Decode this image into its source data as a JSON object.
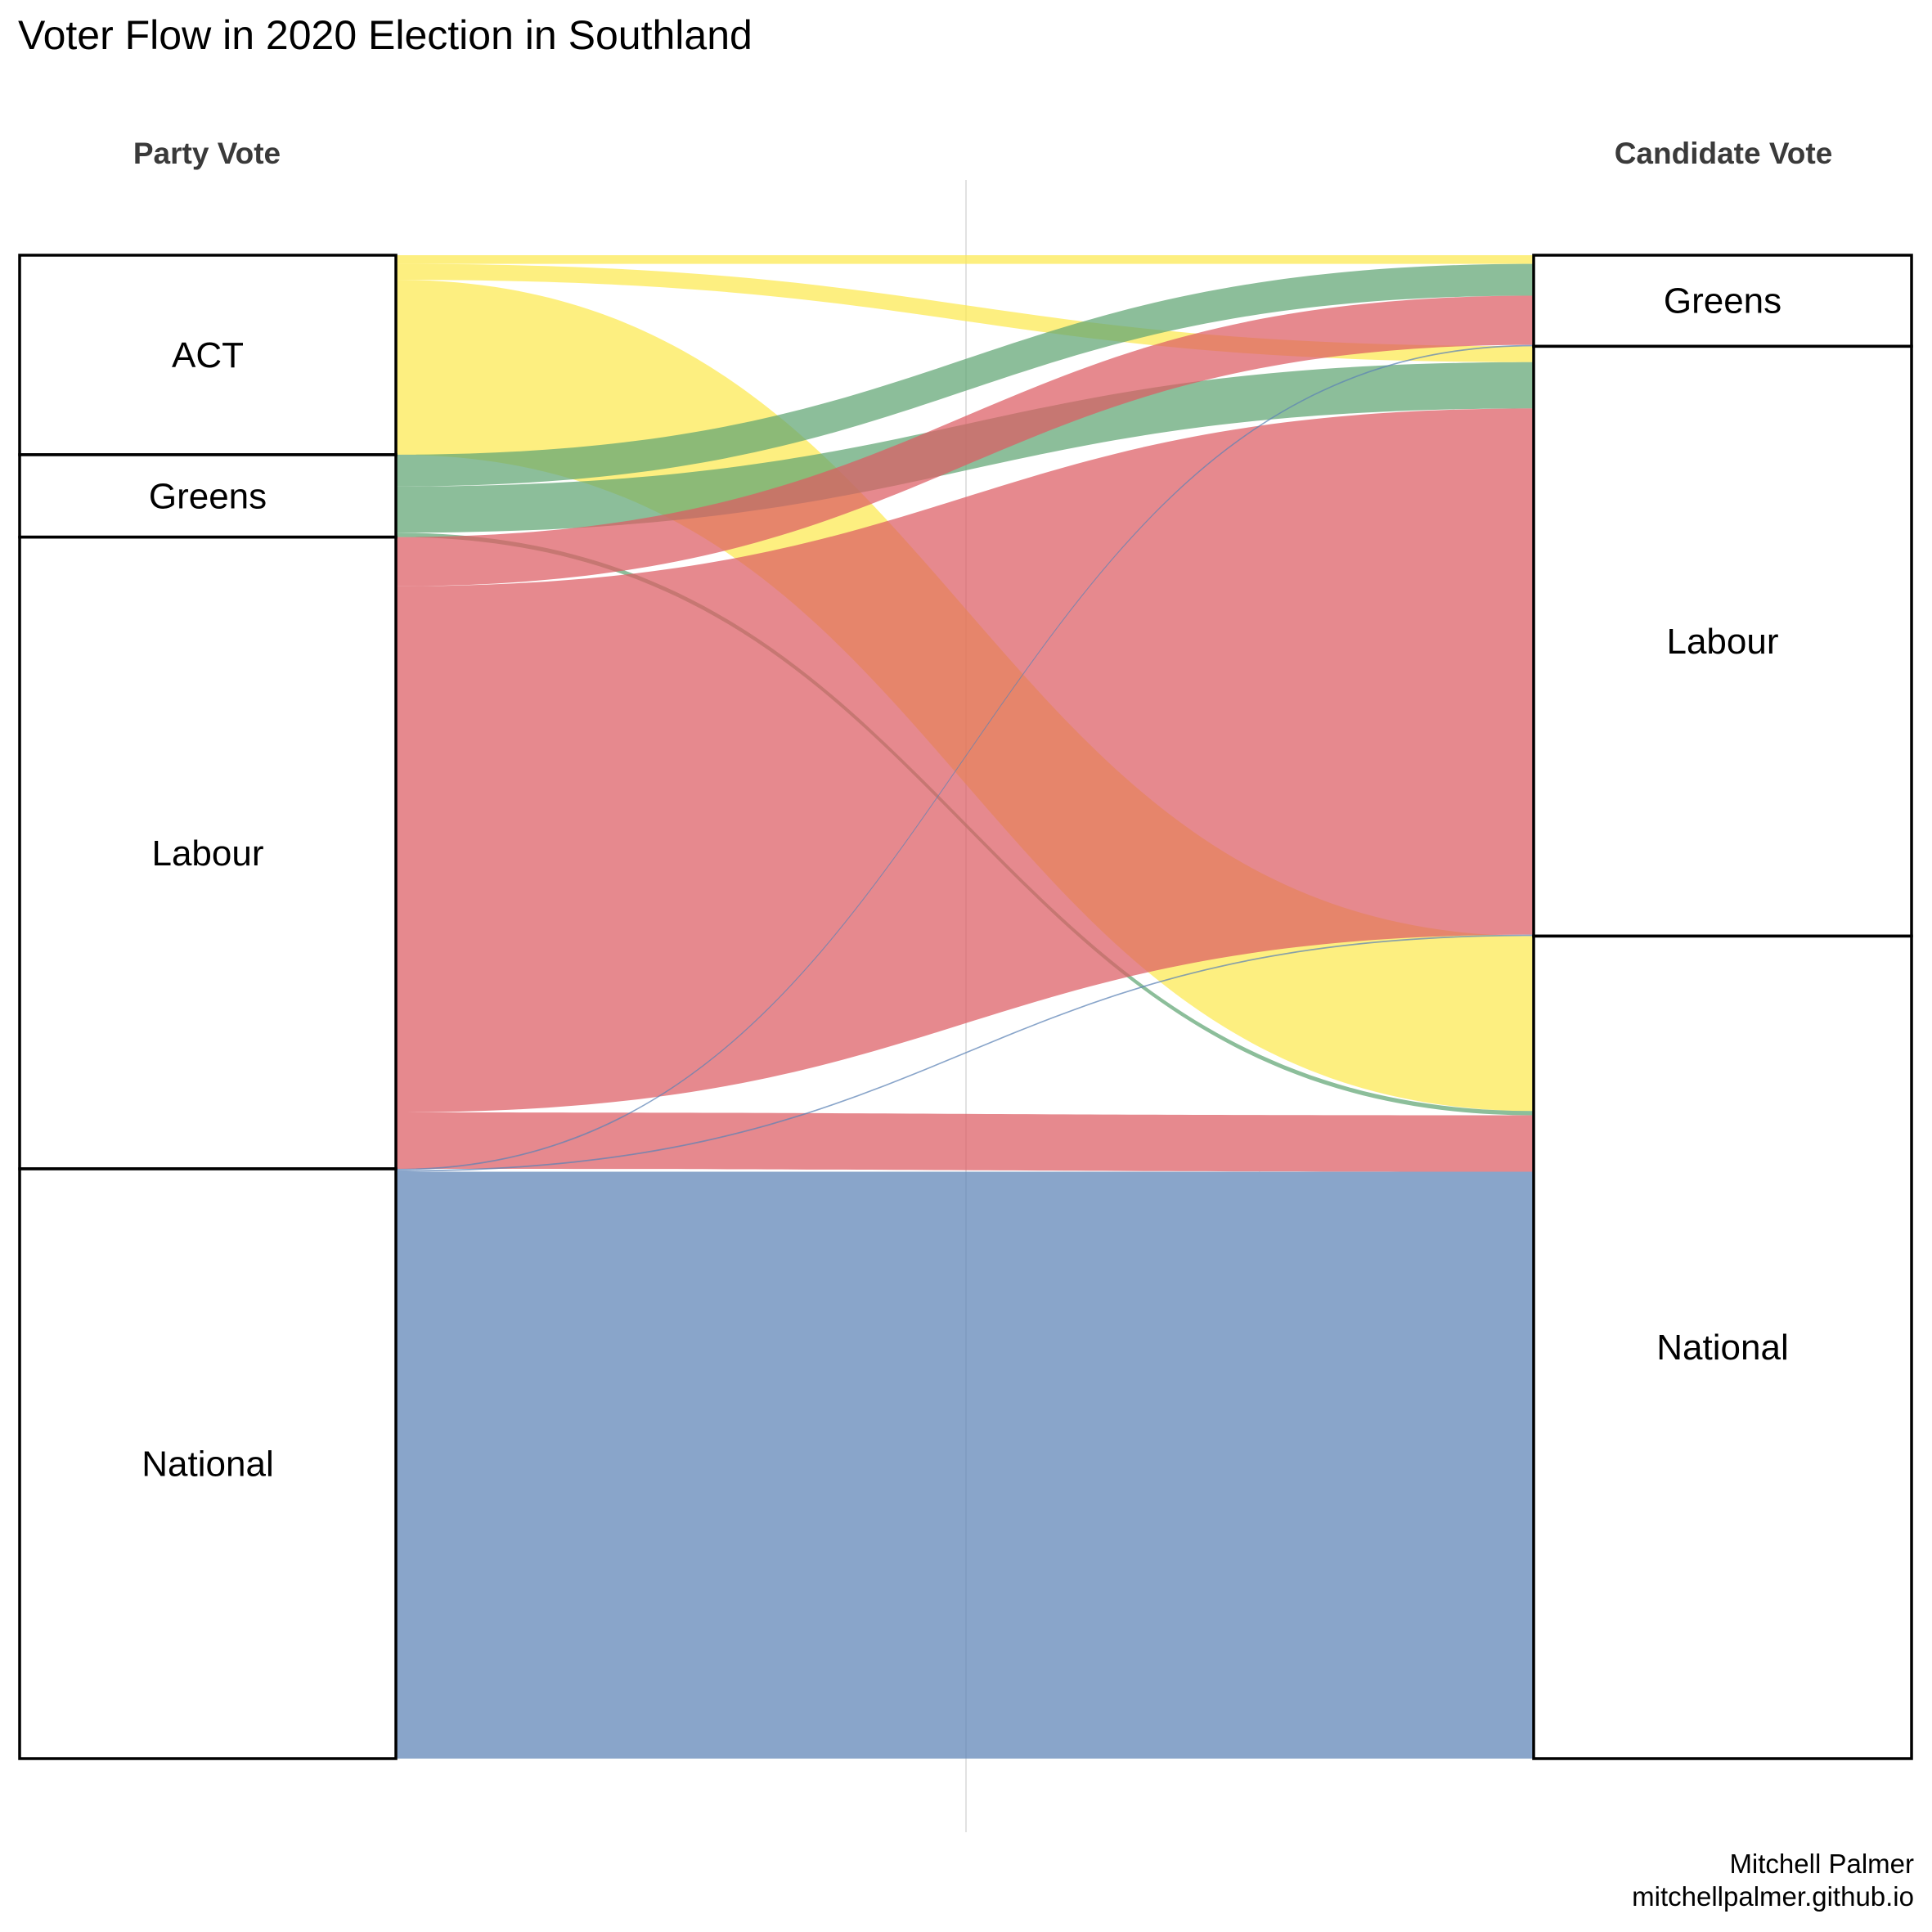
{
  "colors": {
    "ACT": "#FCE94F",
    "Greens": "#5FA573",
    "Labour": "#DC5C63",
    "National": "#5B82B5"
  },
  "chart_data": {
    "type": "alluvial",
    "title": "Voter Flow in 2020 Election in Southland",
    "left_axis_label": "Party Vote",
    "right_axis_label": "Candidate Vote",
    "caption_line1": "Mitchell Palmer",
    "caption_line2": "mitchellpalmer.github.io",
    "left_nodes": [
      "ACT",
      "Greens",
      "Labour",
      "National"
    ],
    "right_nodes": [
      "Greens",
      "Labour",
      "National"
    ],
    "flows": [
      {
        "from": "ACT",
        "to": "Greens",
        "value": 0.6
      },
      {
        "from": "ACT",
        "to": "Labour",
        "value": 1.1
      },
      {
        "from": "ACT",
        "to": "National",
        "value": 12.1
      },
      {
        "from": "Greens",
        "to": "Greens",
        "value": 2.2
      },
      {
        "from": "Greens",
        "to": "Labour",
        "value": 3.2
      },
      {
        "from": "Greens",
        "to": "National",
        "value": 0.3
      },
      {
        "from": "Labour",
        "to": "Greens",
        "value": 3.4
      },
      {
        "from": "Labour",
        "to": "Labour",
        "value": 36.4
      },
      {
        "from": "Labour",
        "to": "National",
        "value": 3.9
      },
      {
        "from": "National",
        "to": "Greens",
        "value": 0.1
      },
      {
        "from": "National",
        "to": "Labour",
        "value": 0.1
      },
      {
        "from": "National",
        "to": "National",
        "value": 40.6
      }
    ]
  }
}
